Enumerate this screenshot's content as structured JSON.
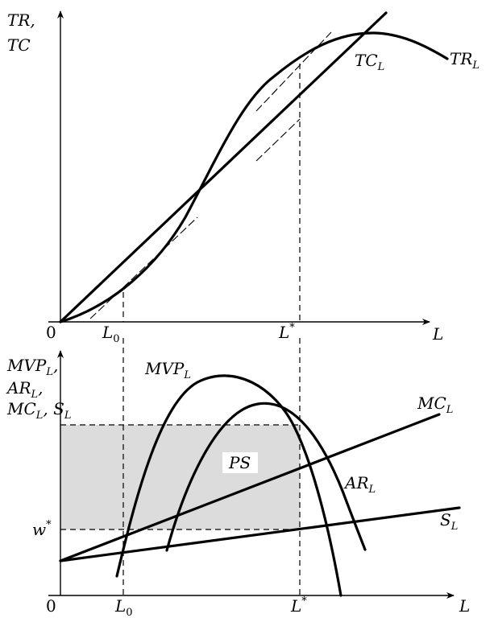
{
  "top": {
    "ylabel_line1": "TR,",
    "ylabel_line2": "TC",
    "origin": "0",
    "xlabel": "L",
    "tick_L0_main": "L",
    "tick_L0_sub": "0",
    "tick_Lstar_main": "L",
    "tick_Lstar_sup": "*",
    "tc_main": "TC",
    "tc_sub": "L",
    "tr_main": "TR",
    "tr_sub": "L"
  },
  "bottom": {
    "ylabel_line1_main": "MVP",
    "ylabel_line1_sub": "L",
    "ylabel_line1_tail": ",",
    "ylabel_line2_main": "AR",
    "ylabel_line2_sub": "L",
    "ylabel_line2_tail": ",",
    "ylabel_line3_main": "MC",
    "ylabel_line3_sub": "L",
    "ylabel_line3_tail": ", S",
    "ylabel_line3_sub2": "L",
    "origin": "0",
    "xlabel": "L",
    "tick_L0_main": "L",
    "tick_L0_sub": "0",
    "tick_Lstar_main": "L",
    "tick_Lstar_sup": "*",
    "w_main": "w",
    "w_sup": "*",
    "mvp_main": "MVP",
    "mvp_sub": "L",
    "ar_main": "AR",
    "ar_sub": "L",
    "mc_main": "MC",
    "mc_sub": "L",
    "s_main": "S",
    "s_sub": "L",
    "ps": "PS"
  },
  "colors": {
    "ink": "#000000",
    "shade": "#dcdcdc",
    "background": "#ffffff"
  }
}
